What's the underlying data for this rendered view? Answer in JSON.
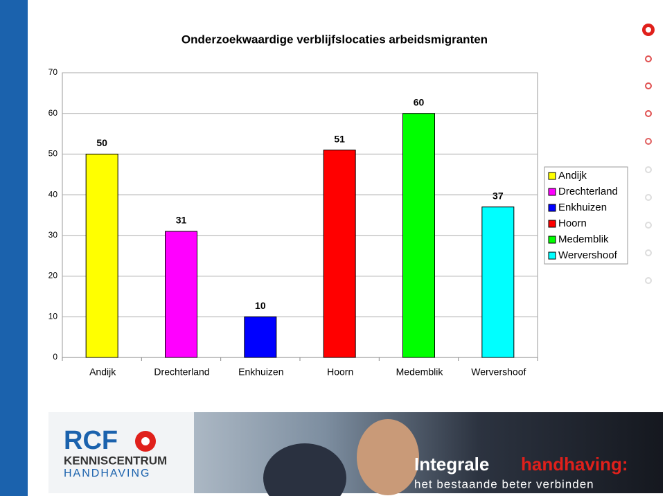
{
  "chart_data": {
    "type": "bar",
    "title": "Onderzoekwaardige verblijfslocaties arbeidsmigranten",
    "categories": [
      "Andijk",
      "Drechterland",
      "Enkhuizen",
      "Hoorn",
      "Medemblik",
      "Wervershoof"
    ],
    "values": [
      50,
      31,
      10,
      51,
      60,
      37
    ],
    "colors": [
      "#ffff00",
      "#ff00ff",
      "#0000ff",
      "#ff0000",
      "#00ff00",
      "#00ffff"
    ],
    "ylim": [
      0,
      70
    ],
    "yticks": [
      0,
      10,
      20,
      30,
      40,
      50,
      60,
      70
    ],
    "grid": true,
    "legend": "right"
  },
  "banner": {
    "logo": "RCF",
    "org1": "KENNISCENTRUM",
    "org2": "HANDHAVING",
    "headline_a": "Integrale",
    "headline_b": "handhaving:",
    "tagline": "het bestaande beter verbinden"
  }
}
